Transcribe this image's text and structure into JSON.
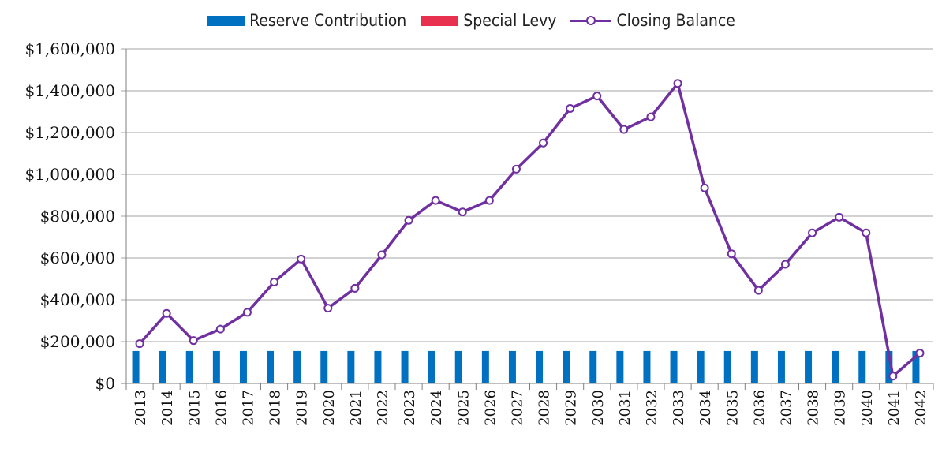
{
  "chart_data": {
    "type": "bar",
    "categories": [
      "2013",
      "2014",
      "2015",
      "2016",
      "2017",
      "2018",
      "2019",
      "2020",
      "2021",
      "2022",
      "2023",
      "2024",
      "2025",
      "2026",
      "2027",
      "2028",
      "2029",
      "2030",
      "2031",
      "2032",
      "2033",
      "2034",
      "2035",
      "2036",
      "2037",
      "2038",
      "2039",
      "2040",
      "2041",
      "2042"
    ],
    "series": [
      {
        "name": "Reserve Contribution",
        "type": "bar",
        "color": "#0070c0",
        "values": [
          155000,
          155000,
          155000,
          155000,
          155000,
          155000,
          155000,
          155000,
          155000,
          155000,
          155000,
          155000,
          155000,
          155000,
          155000,
          155000,
          155000,
          155000,
          155000,
          155000,
          155000,
          155000,
          155000,
          155000,
          155000,
          155000,
          155000,
          155000,
          155000,
          155000
        ]
      },
      {
        "name": "Special Levy",
        "type": "bar",
        "color": "#e8314f",
        "values": [
          0,
          0,
          0,
          0,
          0,
          0,
          0,
          0,
          0,
          0,
          0,
          0,
          0,
          0,
          0,
          0,
          0,
          0,
          0,
          0,
          0,
          0,
          0,
          0,
          0,
          0,
          0,
          0,
          0,
          0
        ]
      },
      {
        "name": "Closing Balance",
        "type": "line",
        "color": "#7030a0",
        "values": [
          190000,
          335000,
          205000,
          260000,
          340000,
          485000,
          595000,
          360000,
          455000,
          615000,
          780000,
          875000,
          820000,
          875000,
          1025000,
          1150000,
          1315000,
          1375000,
          1215000,
          1275000,
          1435000,
          935000,
          620000,
          445000,
          570000,
          720000,
          795000,
          720000,
          35000,
          145000
        ]
      }
    ],
    "ylim": [
      0,
      1600000
    ],
    "yticks": [
      "$0",
      "$200,000",
      "$400,000",
      "$600,000",
      "$800,000",
      "$1,000,000",
      "$1,200,000",
      "$1,400,000",
      "$1,600,000"
    ],
    "grid": true,
    "legend_position": "top"
  }
}
